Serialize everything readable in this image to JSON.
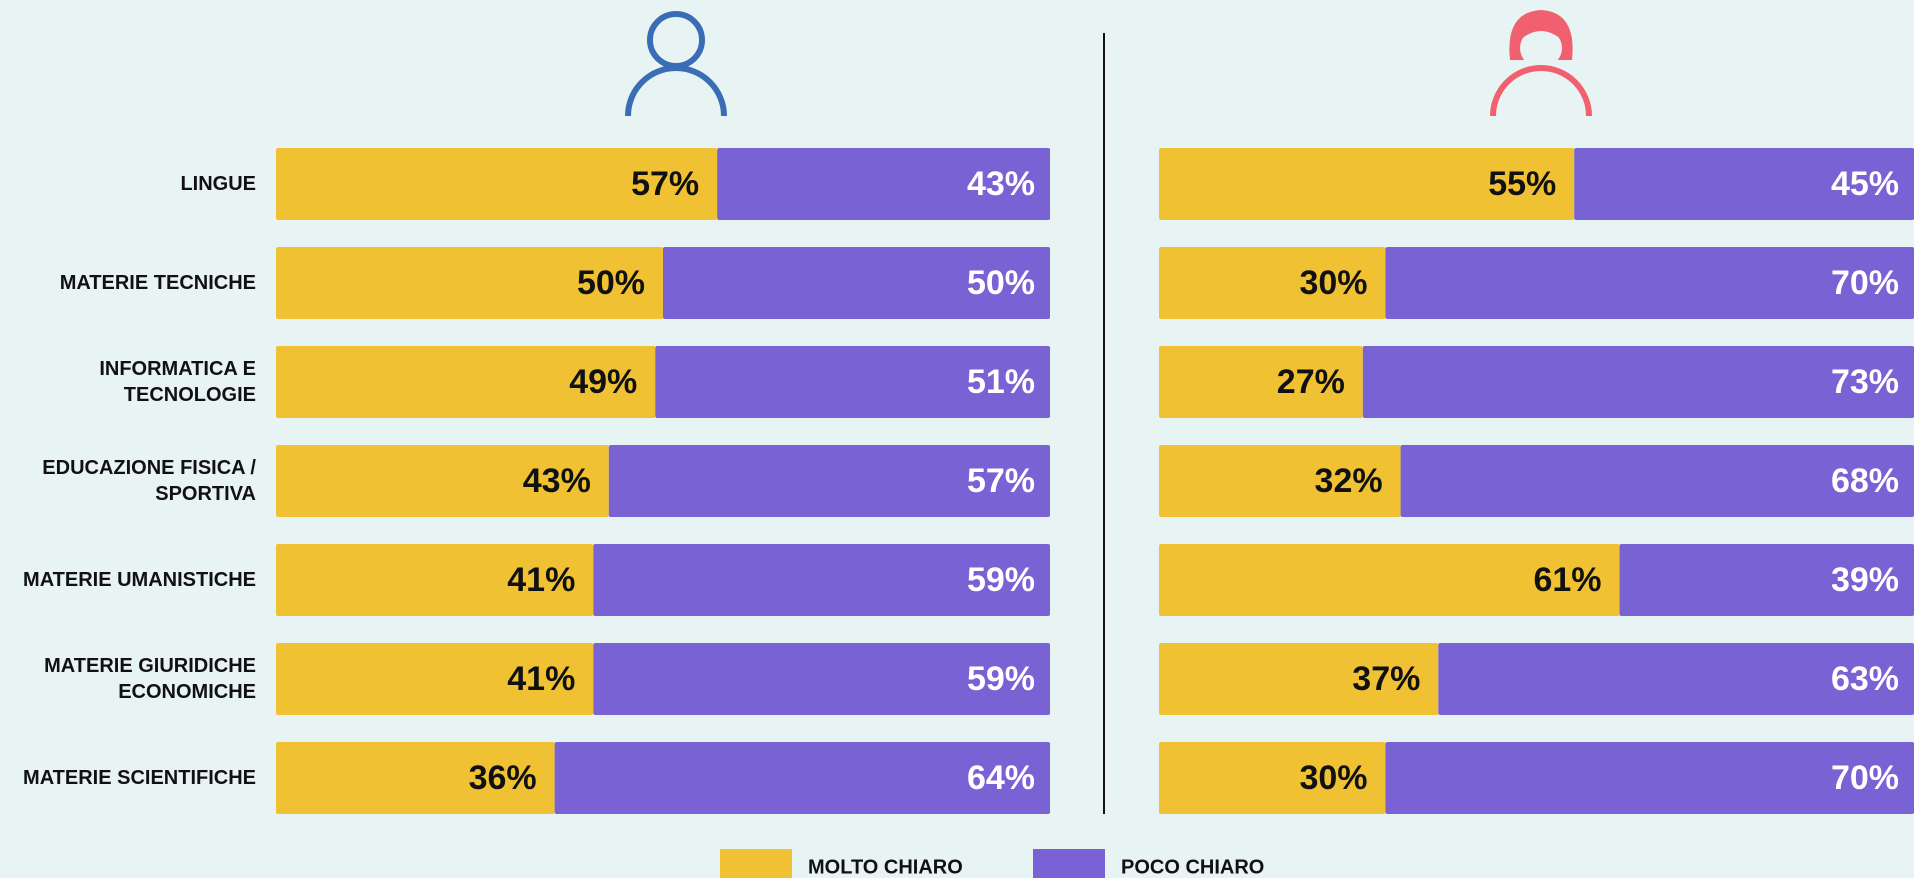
{
  "chart_data": [
    {
      "type": "stacked-bar",
      "categories": [
        "LINGUE",
        "MATERIE TECNICHE",
        "INFORMATICA E\nTECNOLOGIE",
        "EDUCAZIONE FISICA /\nSPORTIVA",
        "MATERIE UMANISTICHE",
        "MATERIE GIURIDICHE\nECONOMICHE",
        "MATERIE SCIENTIFICHE"
      ],
      "xlim": [
        0,
        100
      ],
      "series": [
        {
          "name": "MOLTO CHIARO",
          "color": "#f0c233",
          "values": [
            57,
            50,
            49,
            43,
            41,
            41,
            36
          ],
          "value_labels": [
            "57%",
            "50%",
            "49%",
            "43%",
            "41%",
            "41%",
            "36%"
          ]
        },
        {
          "name": "POCO CHIARO",
          "color": "#7862d4",
          "values": [
            43,
            50,
            51,
            57,
            59,
            59,
            64
          ],
          "value_labels": [
            "43%",
            "50%",
            "51%",
            "57%",
            "59%",
            "59%",
            "64%"
          ]
        }
      ]
    },
    {
      "type": "stacked-bar",
      "xlim": [
        0,
        100
      ],
      "series": [
        {
          "color": "#f0c233",
          "values": [
            55,
            30,
            27,
            32,
            61,
            37,
            30
          ],
          "value_labels": [
            "55%",
            "30%",
            "27%",
            "32%",
            "61%",
            "37%",
            "30%"
          ]
        },
        {
          "color": "#7862d4",
          "values": [
            45,
            70,
            73,
            68,
            39,
            63,
            70
          ],
          "value_labels": [
            "45%",
            "70%",
            "73%",
            "68%",
            "39%",
            "63%",
            "70%"
          ]
        }
      ]
    }
  ]
}
